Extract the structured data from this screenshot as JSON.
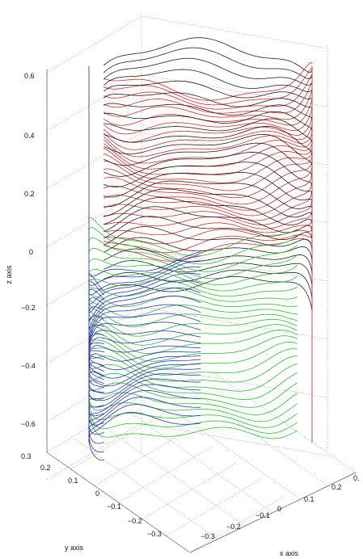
{
  "chart_data": {
    "type": "line",
    "kind": "3d-contour-lines-on-cylinder",
    "title": "",
    "xlabel": "x axis",
    "ylabel": "y axis",
    "zlabel": "z axis",
    "xlim": [
      -0.35,
      0.35
    ],
    "ylim": [
      -0.35,
      0.35
    ],
    "zlim": [
      -0.65,
      0.65
    ],
    "x_ticks": [
      "−0.3",
      "−0.2",
      "−0.1",
      "0",
      "0.1",
      "0.2",
      "0."
    ],
    "y_ticks": [
      "0.3",
      "0.2",
      "0.1",
      "0",
      "−0.1",
      "−0.2",
      "−0.3"
    ],
    "z_ticks": [
      "0.6",
      "0.4",
      "0.2",
      "0",
      "−0.2",
      "−0.4",
      "−0.6"
    ],
    "grid": true,
    "cylinder_radius": 0.3,
    "series": [
      {
        "color": "#c81e1e",
        "theta_range_deg": [
          -60,
          90
        ],
        "z_range": [
          0.05,
          0.62
        ]
      },
      {
        "color": "#111111",
        "theta_range_deg": [
          90,
          240
        ],
        "z_range": [
          -0.2,
          0.62
        ]
      },
      {
        "color": "#21b52a",
        "theta_range_deg": [
          -90,
          60
        ],
        "z_range": [
          -0.58,
          0.1
        ]
      },
      {
        "color": "#1e2aa8",
        "theta_range_deg": [
          180,
          300
        ],
        "z_range": [
          -0.66,
          -0.1
        ]
      }
    ]
  }
}
